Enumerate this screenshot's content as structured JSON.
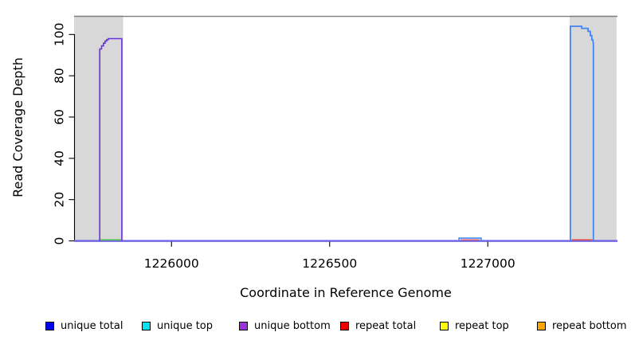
{
  "chart_data": {
    "type": "area",
    "title": "",
    "xlabel": "Coordinate in Reference Genome",
    "ylabel": "Read Coverage Depth",
    "xlim": [
      1225692,
      1227410
    ],
    "ylim": [
      0,
      109
    ],
    "x_ticks": [
      1226000,
      1226500,
      1227000
    ],
    "y_ticks": [
      0,
      20,
      40,
      60,
      80,
      100
    ],
    "grid": false,
    "legend_position": "bottom",
    "colors": {
      "shaded_region": "#D8D8D8",
      "top_border": "#7d7d7d",
      "axis": "#000000"
    },
    "shaded_regions": [
      {
        "name": "left-gray-region",
        "x0": 1225692,
        "x1": 1225847
      },
      {
        "name": "right-gray-region",
        "x0": 1227259,
        "x1": 1227407
      }
    ],
    "series": [
      {
        "name": "baseline-coverage",
        "color": "#6E60EC",
        "width": 2.2,
        "points": [
          [
            1225692,
            0
          ],
          [
            1227410,
            0
          ]
        ]
      },
      {
        "name": "left-peak-unique-bottom",
        "color": "#6633DD",
        "width": 1.6,
        "points": [
          [
            1225773,
            0
          ],
          [
            1225773,
            93
          ],
          [
            1225779,
            93
          ],
          [
            1225779,
            94.5
          ],
          [
            1225785,
            94.5
          ],
          [
            1225785,
            95.8
          ],
          [
            1225790,
            95.8
          ],
          [
            1225790,
            96.8
          ],
          [
            1225795,
            96.8
          ],
          [
            1225795,
            97.5
          ],
          [
            1225800,
            97.5
          ],
          [
            1225800,
            98
          ],
          [
            1225843,
            98
          ],
          [
            1225843,
            0
          ]
        ]
      },
      {
        "name": "left-peak-base-green",
        "color": "#55C555",
        "width": 1.6,
        "points": [
          [
            1225775,
            0.5
          ],
          [
            1225841,
            0.5
          ]
        ]
      },
      {
        "name": "mid-bump-blue",
        "color": "#4286F5",
        "width": 1.6,
        "points": [
          [
            1226909,
            0
          ],
          [
            1226909,
            1.3
          ],
          [
            1226979,
            1.3
          ],
          [
            1226979,
            0
          ]
        ]
      },
      {
        "name": "mid-bump-red",
        "color": "#E06060",
        "width": 1.4,
        "points": [
          [
            1226914,
            0.5
          ],
          [
            1226974,
            0.5
          ]
        ]
      },
      {
        "name": "right-peak-unique-top",
        "color": "#4286F5",
        "width": 1.8,
        "points": [
          [
            1227261,
            0
          ],
          [
            1227261,
            104
          ],
          [
            1227297,
            104
          ],
          [
            1227297,
            103
          ],
          [
            1227317,
            103
          ],
          [
            1227317,
            101.5
          ],
          [
            1227324,
            101.5
          ],
          [
            1227324,
            99.5
          ],
          [
            1227329,
            99.5
          ],
          [
            1227329,
            97.5
          ],
          [
            1227332,
            97.5
          ],
          [
            1227334,
            95.5
          ],
          [
            1227334,
            0
          ]
        ]
      },
      {
        "name": "right-peak-base-red",
        "color": "#E05050",
        "width": 1.6,
        "points": [
          [
            1227266,
            0.5
          ],
          [
            1227331,
            0.5
          ]
        ]
      }
    ],
    "legend": {
      "entries": [
        {
          "label": "unique total",
          "color": "#0000EE"
        },
        {
          "label": "unique top",
          "color": "#00E5EE"
        },
        {
          "label": "unique bottom",
          "color": "#9B30DC"
        },
        {
          "label": "repeat total",
          "color": "#EE0000"
        },
        {
          "label": "repeat top",
          "color": "#FFFF00"
        },
        {
          "label": "repeat bottom",
          "color": "#FFA500"
        }
      ]
    }
  }
}
